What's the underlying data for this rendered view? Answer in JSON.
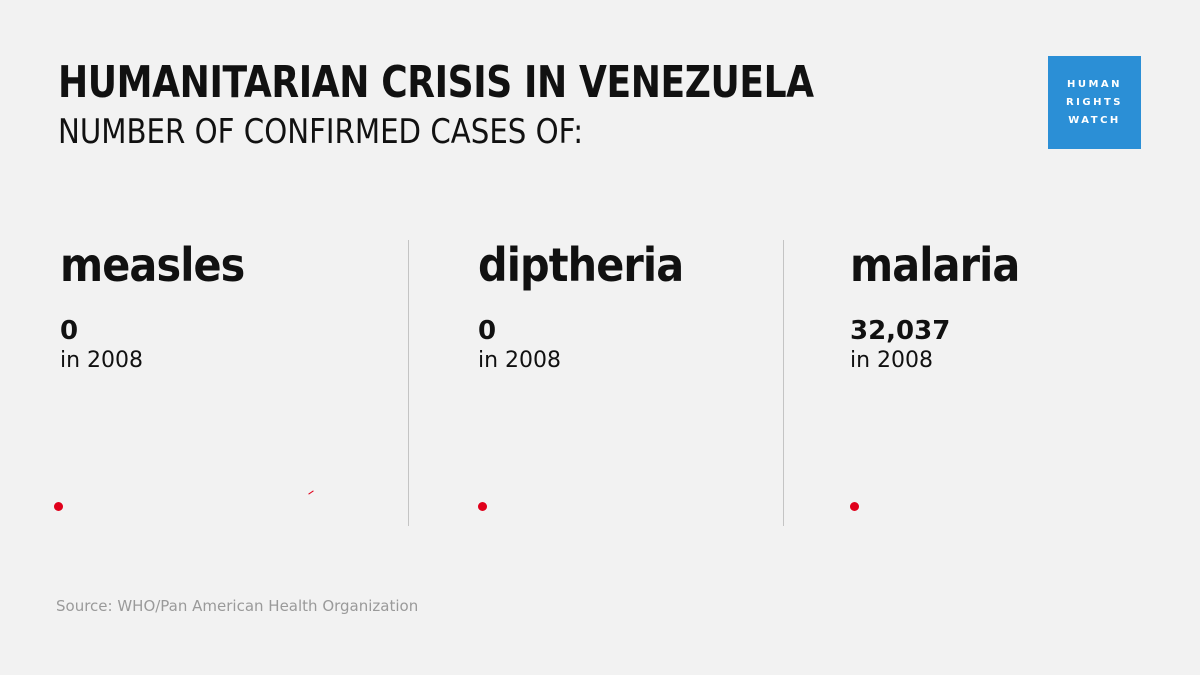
{
  "header": {
    "title": "HUMANITARIAN CRISIS IN VENEZUELA",
    "subtitle": "NUMBER OF CONFIRMED CASES OF:"
  },
  "logo": {
    "lines": [
      "HUMAN",
      "RIGHTS",
      "WATCH"
    ],
    "color": "#2b8fd6"
  },
  "chart_data": {
    "type": "table",
    "title": "HUMANITARIAN CRISIS IN VENEZUELA",
    "subtitle": "NUMBER OF CONFIRMED CASES OF:",
    "categories": [
      "measles",
      "diptheria",
      "malaria"
    ],
    "series": [
      {
        "year_label": "in 2008",
        "values": [
          0,
          0,
          32037
        ],
        "value_labels": [
          "0",
          "0",
          "32,037"
        ]
      }
    ],
    "marker_color": "#e0001b"
  },
  "footer": {
    "source": "Source: WHO/Pan American Health Organization"
  }
}
